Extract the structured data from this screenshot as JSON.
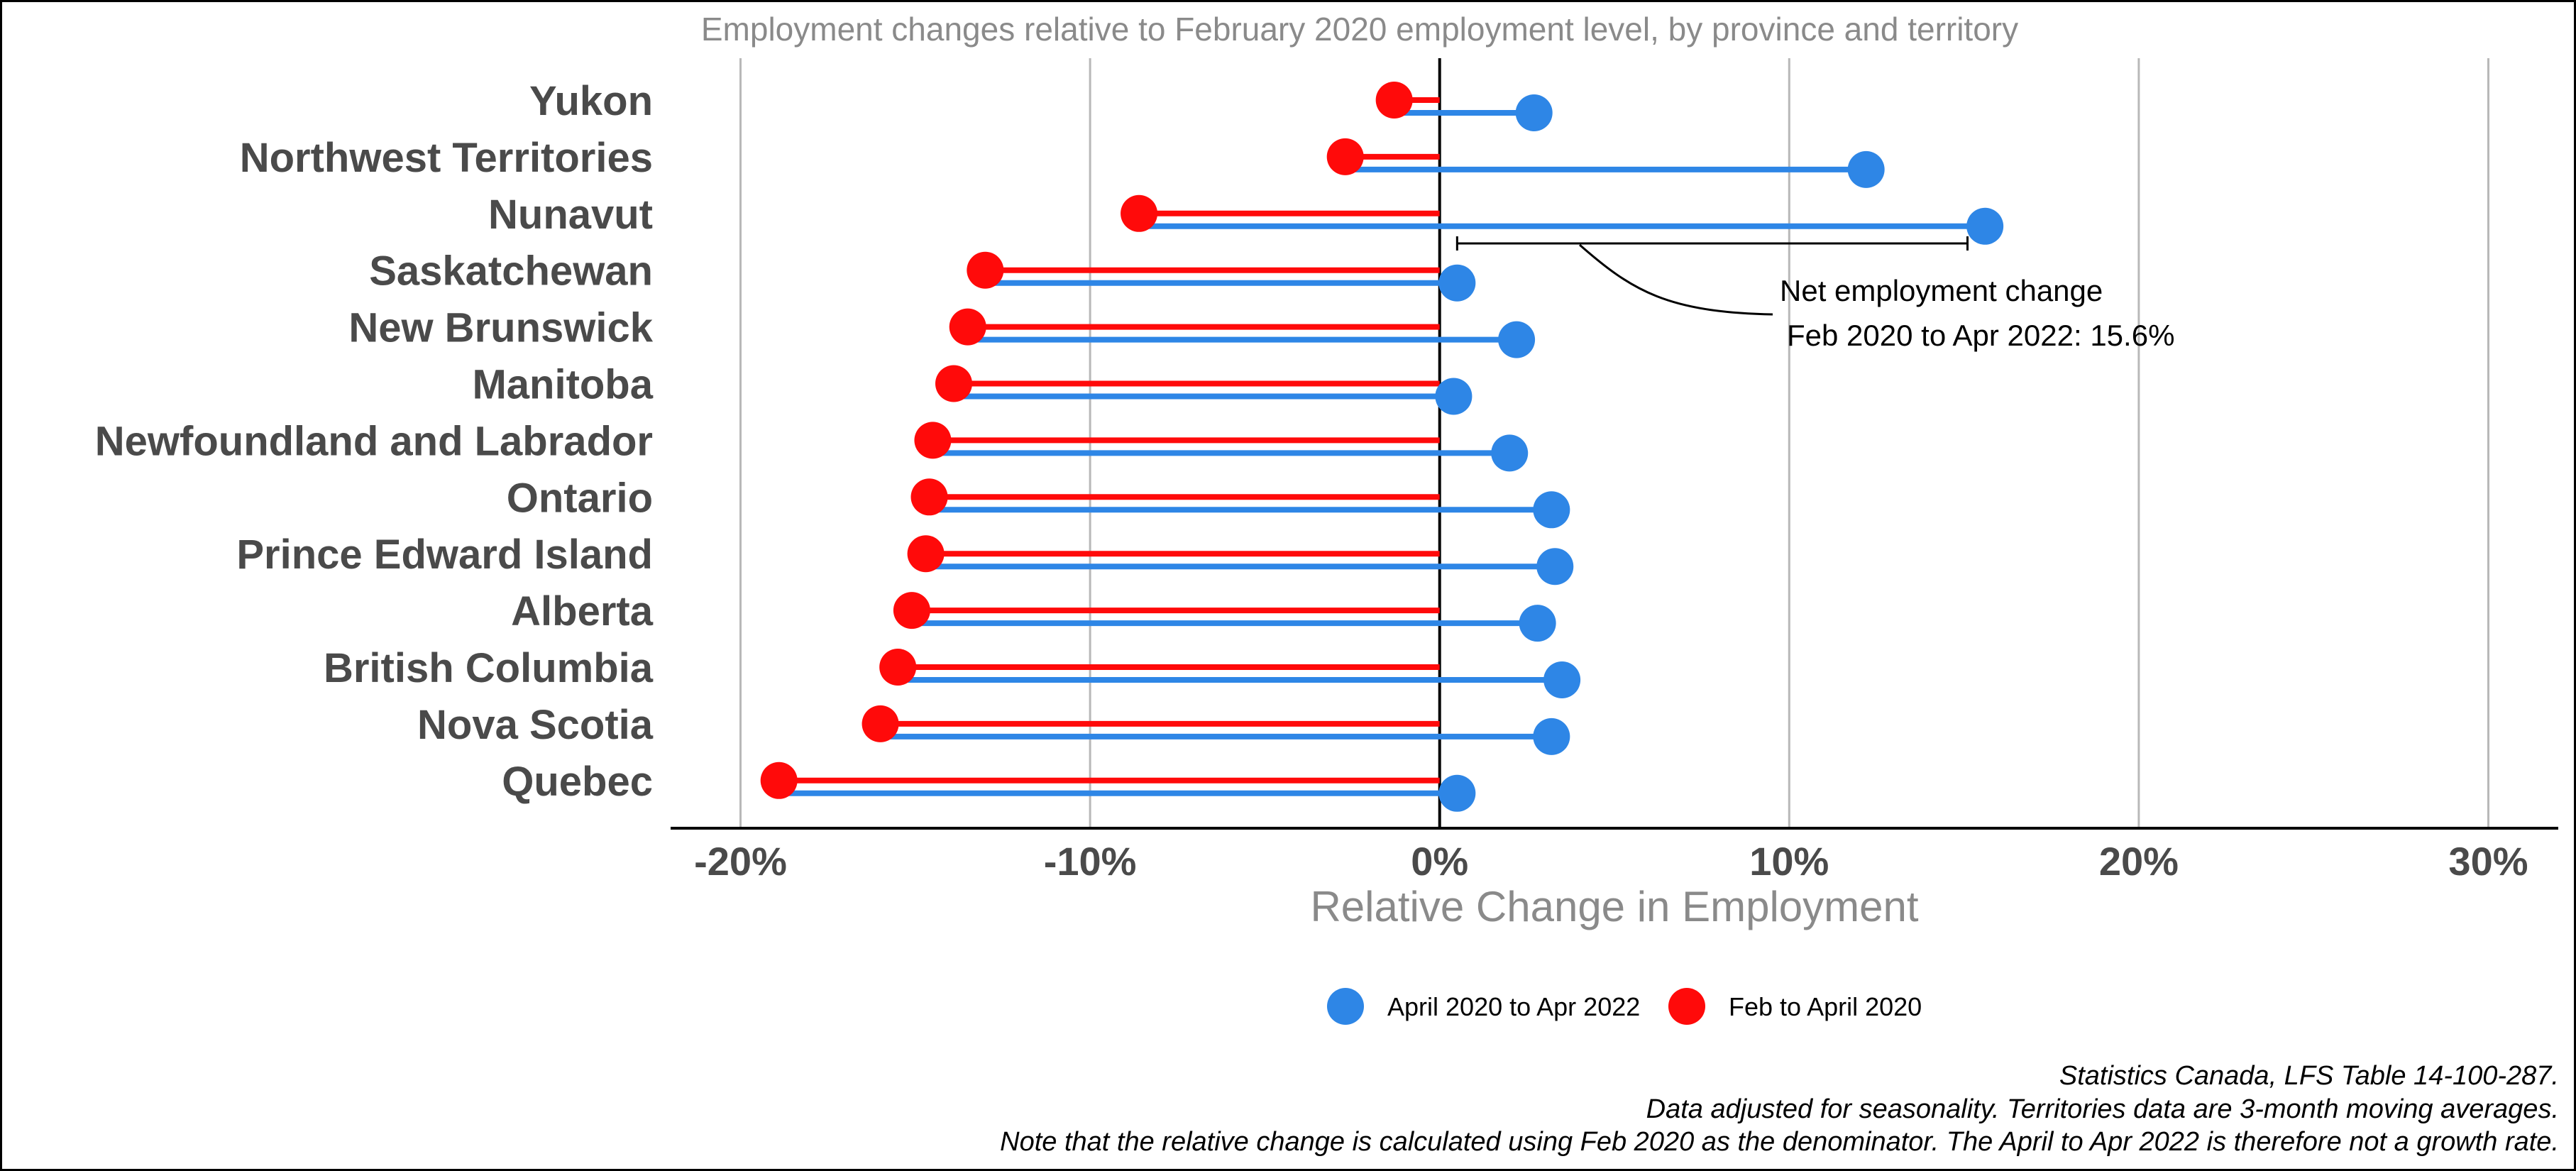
{
  "colors": {
    "series_recovery": "#2e86e6",
    "series_drop": "#ff0a0a",
    "grid": "#b8b8b8",
    "axis": "#000000",
    "text_dark": "#4a4a4a",
    "text_light": "#8a8a8a"
  },
  "chart_data": {
    "type": "dumbbell",
    "title": "Employment changes relative to February 2020 employment level, by province and territory",
    "xlabel": "Relative Change in Employment",
    "ylabel": "",
    "xlim": [
      -22,
      32
    ],
    "x_ticks": [
      -20,
      -10,
      0,
      10,
      20,
      30
    ],
    "x_tick_labels": [
      "-20%",
      "-10%",
      "0%",
      "10%",
      "20%",
      "30%"
    ],
    "grid": "vertical",
    "legend_position": "bottom",
    "categories": [
      "Yukon",
      "Northwest Territories",
      "Nunavut",
      "Saskatchewan",
      "New Brunswick",
      "Manitoba",
      "Newfoundland and Labrador",
      "Ontario",
      "Prince Edward Island",
      "Alberta",
      "British Columbia",
      "Nova Scotia",
      "Quebec"
    ],
    "series": [
      {
        "name": "April 2020 to Apr 2022",
        "values": [
          2.7,
          12.2,
          15.6,
          0.5,
          2.2,
          0.4,
          2.0,
          3.2,
          3.3,
          2.8,
          3.5,
          3.2,
          0.5
        ]
      },
      {
        "name": "Feb to April 2020",
        "values": [
          -1.3,
          -2.7,
          -8.6,
          -13.0,
          -13.5,
          -13.9,
          -14.5,
          -14.6,
          -14.7,
          -15.1,
          -15.5,
          -16.0,
          -18.9
        ]
      }
    ],
    "annotation": {
      "line1": "Net employment change",
      "line2": "Feb 2020 to Apr 2022: 15.6%",
      "bracket_from": 0.5,
      "bracket_to": 15.1
    },
    "notes": [
      "Statistics Canada, LFS Table 14-100-287.",
      "Data adjusted for seasonality. Territories data are 3-month moving averages.",
      "Note that the relative change is calculated using Feb 2020 as the denominator. The April to Apr 2022 is therefore not a growth rate."
    ]
  }
}
